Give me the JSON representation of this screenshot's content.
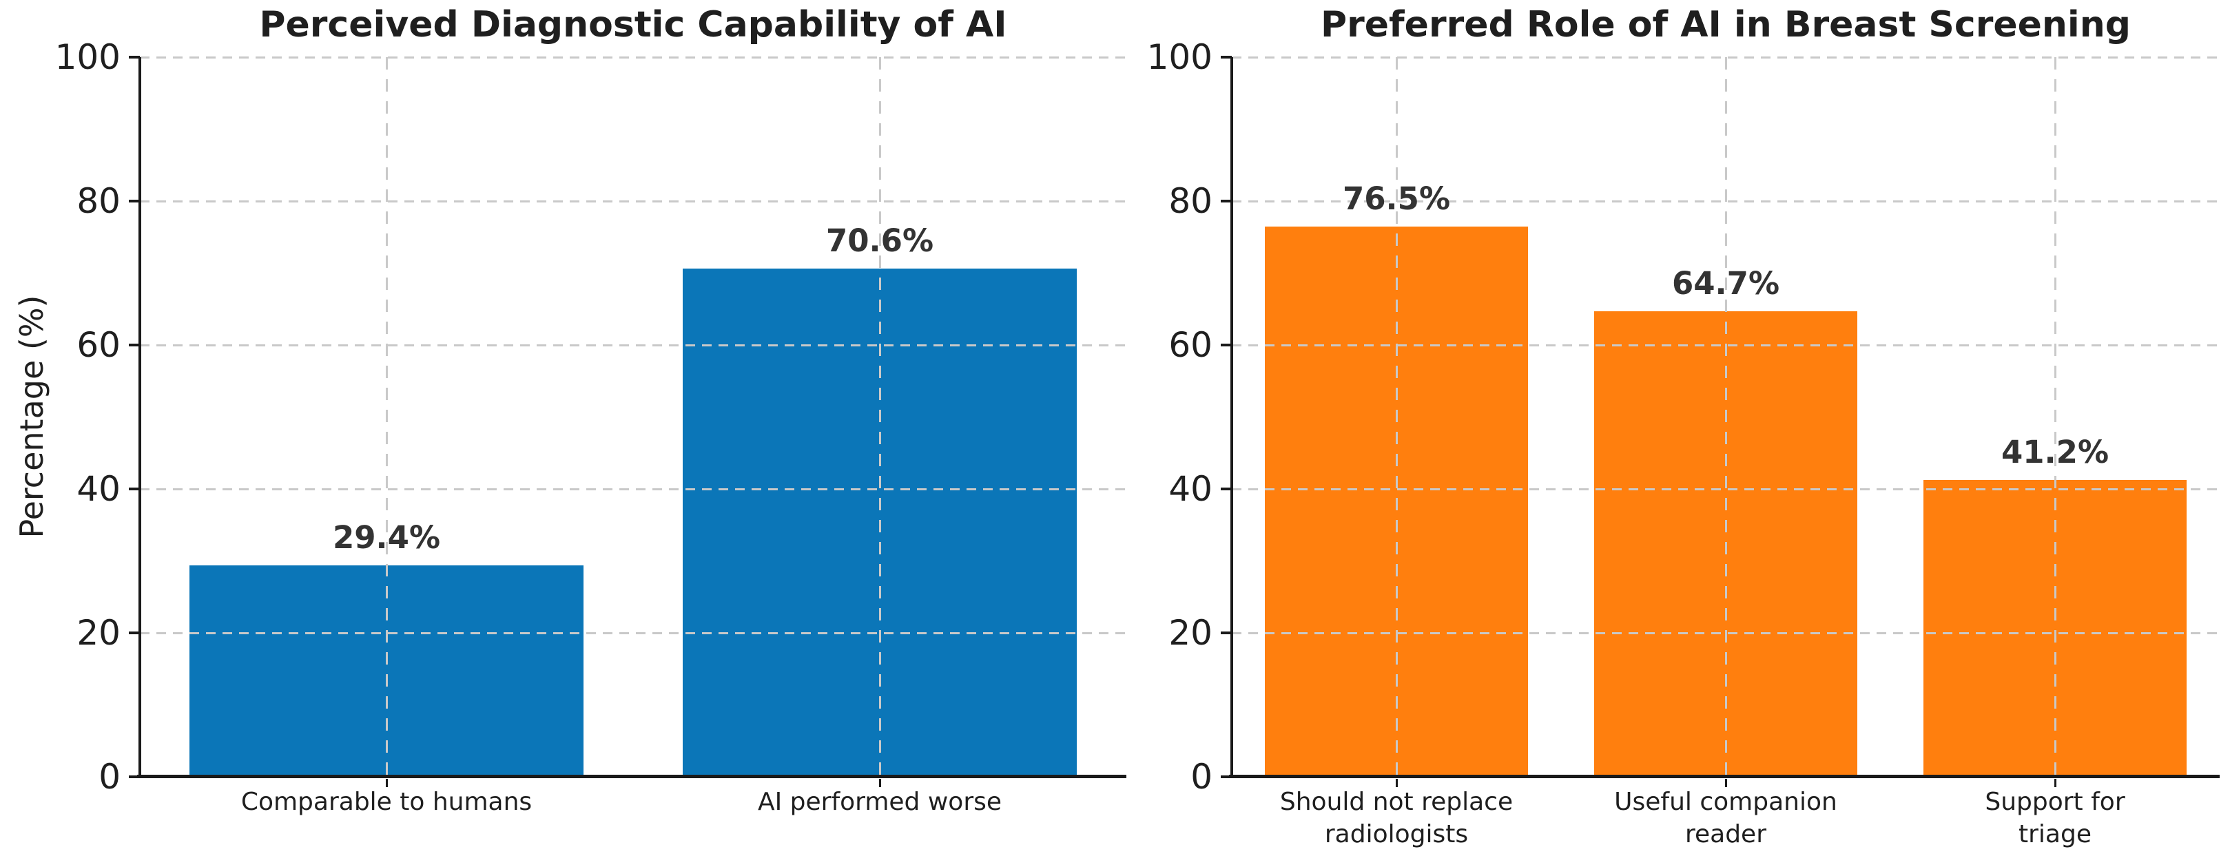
{
  "figure": {
    "background": "#ffffff",
    "text_color": "#1f1f1f",
    "grid_color": "#c9c9c9",
    "grid_style": "dashed",
    "value_label_color": "#333333"
  },
  "chart_data": [
    {
      "type": "bar",
      "title": "Perceived Diagnostic Capability of AI",
      "ylabel": "Percentage (%)",
      "xlabel": "",
      "categories": [
        "Comparable to humans",
        "AI performed worse"
      ],
      "values": [
        29.4,
        70.6
      ],
      "bar_labels": [
        "29.4%",
        "70.6%"
      ],
      "bar_color": "#0b76b8",
      "ylim": [
        0,
        100
      ],
      "yticks": [
        0,
        20,
        40,
        60,
        80,
        100
      ],
      "ytick_labels": [
        "0",
        "20",
        "40",
        "60",
        "80",
        "100"
      ],
      "grid": "dashed horizontal and vertical",
      "legend": "none"
    },
    {
      "type": "bar",
      "title": "Preferred Role of AI in Breast Screening",
      "ylabel": "",
      "xlabel": "",
      "categories": [
        "Should not replace\nradiologists",
        "Useful companion\nreader",
        "Support for triage"
      ],
      "values": [
        76.5,
        64.7,
        41.2
      ],
      "bar_labels": [
        "76.5%",
        "64.7%",
        "41.2%"
      ],
      "bar_color": "#ff7f0e",
      "ylim": [
        0,
        100
      ],
      "yticks": [
        0,
        20,
        40,
        60,
        80,
        100
      ],
      "ytick_labels": [
        "0",
        "20",
        "40",
        "60",
        "80",
        "100"
      ],
      "grid": "dashed horizontal and vertical",
      "legend": "none"
    }
  ]
}
